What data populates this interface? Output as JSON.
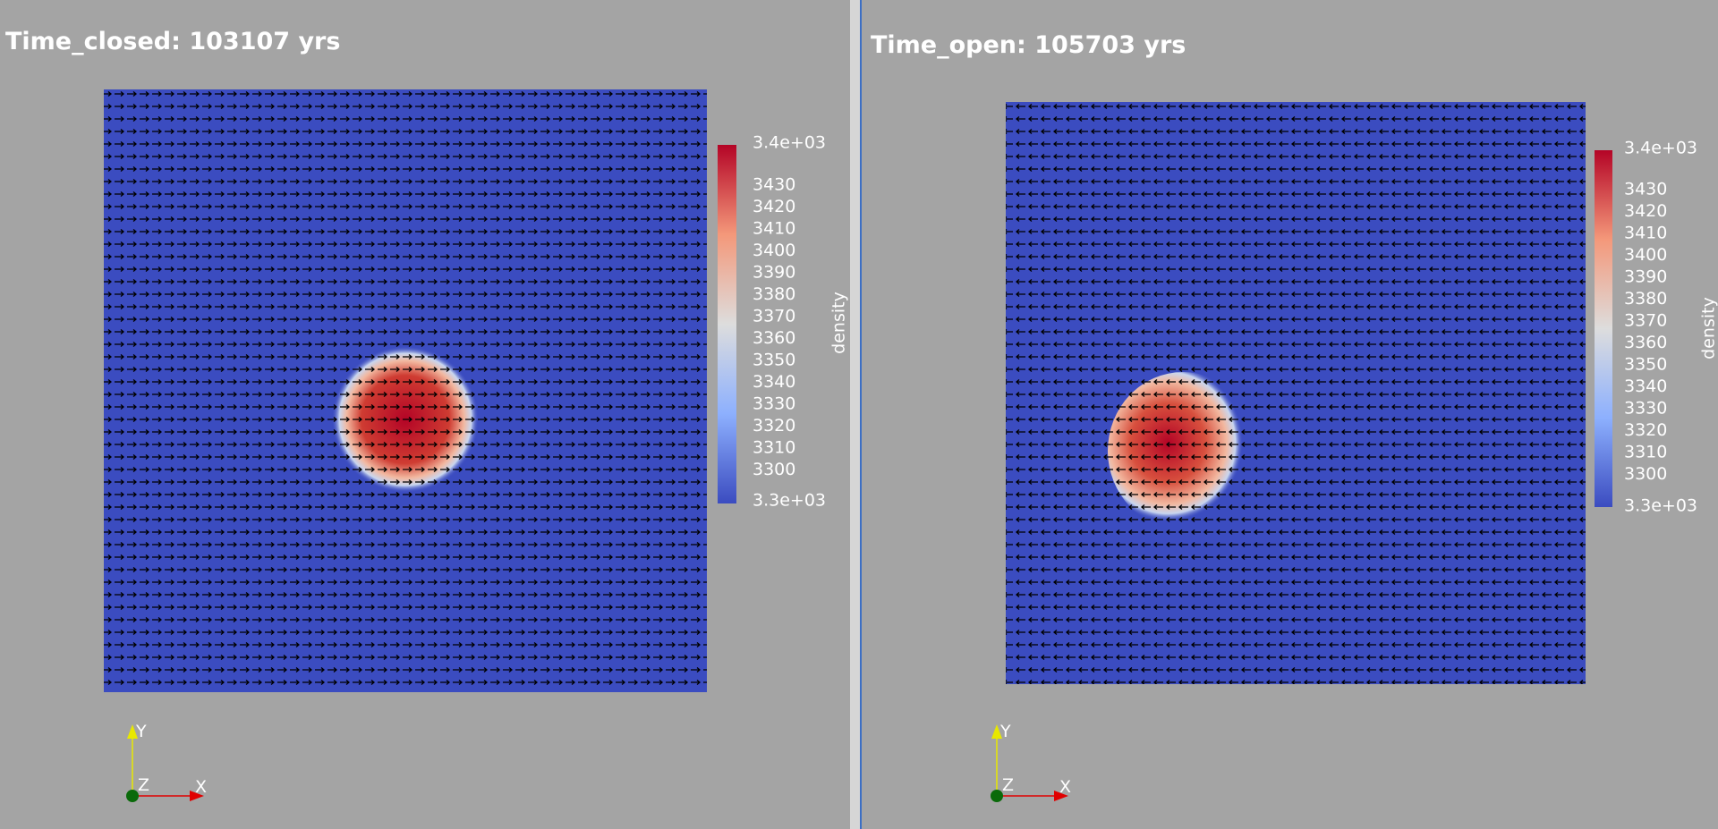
{
  "viewports": [
    {
      "title": "Time_closed: 103107 yrs",
      "colorbar": {
        "title": "density",
        "max_label": "3.4e+03",
        "min_label": "3.3e+03",
        "ticks": [
          3430,
          3420,
          3410,
          3400,
          3390,
          3380,
          3370,
          3360,
          3350,
          3340,
          3330,
          3320,
          3310,
          3300
        ]
      },
      "axes": {
        "x": "X",
        "y": "Y",
        "z": "Z"
      }
    },
    {
      "title": "Time_open: 105703 yrs",
      "colorbar": {
        "title": "density",
        "max_label": "3.4e+03",
        "min_label": "3.3e+03",
        "ticks": [
          3430,
          3420,
          3410,
          3400,
          3390,
          3380,
          3370,
          3360,
          3350,
          3340,
          3330,
          3320,
          3310,
          3300
        ]
      },
      "axes": {
        "x": "X",
        "y": "Y",
        "z": "Z"
      }
    }
  ]
}
